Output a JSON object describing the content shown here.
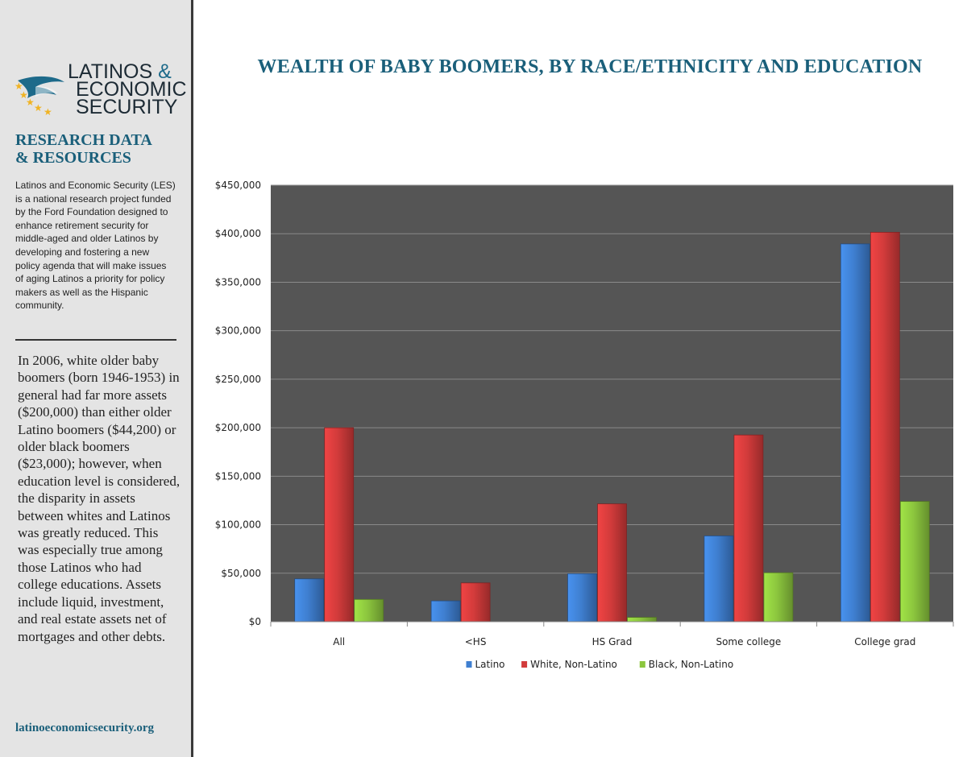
{
  "sidebar": {
    "logo": {
      "line1": "LATINOS",
      "amp": "&",
      "line2": "ECONOMIC",
      "line3": "SECURITY"
    },
    "heading_line1": "RESEARCH DATA",
    "heading_line2": "& RESOURCES",
    "intro": "Latinos and Economic Security (LES) is a national research project funded by the Ford Foundation designed to enhance retirement security for middle-aged and older Latinos by developing and fostering a new policy agenda that will make issues of aging Latinos a priority for policy makers as well as the Hispanic community.",
    "body": "In 2006, white older baby boomers (born 1946-1953) in general had far more assets ($200,000) than either older Latino boomers ($44,200) or older black boomers ($23,000); however, when education level is considered, the disparity in assets between whites and Latinos was greatly reduced.  This was especially true among those Latinos who had college educations.  Assets include liquid, investment, and real estate assets net of mortgages and other debts.",
    "url": "latinoeconomicsecurity.org"
  },
  "chart_data": {
    "type": "bar",
    "title": "WEALTH OF BABY BOOMERS, BY RACE/ETHNICITY AND EDUCATION",
    "categories": [
      "All",
      "<HS",
      "HS Grad",
      "Some college",
      "College grad"
    ],
    "series": [
      {
        "name": "Latino",
        "color": "#3f7fd0",
        "values": [
          44200,
          21500,
          49500,
          88500,
          389500
        ]
      },
      {
        "name": "White, Non-Latino",
        "color": "#d23b3b",
        "values": [
          200000,
          40000,
          121500,
          192500,
          401500
        ]
      },
      {
        "name": "Black, Non-Latino",
        "color": "#8cc63e",
        "values": [
          23000,
          0,
          4500,
          50500,
          124000
        ]
      }
    ],
    "yticks": [
      "$0",
      "$50,000",
      "$100,000",
      "$150,000",
      "$200,000",
      "$250,000",
      "$300,000",
      "$350,000",
      "$400,000",
      "$450,000"
    ],
    "ylim": [
      0,
      450000
    ],
    "ystep": 50000,
    "grid": true,
    "plot_background": "#555555",
    "legend_position": "bottom"
  }
}
